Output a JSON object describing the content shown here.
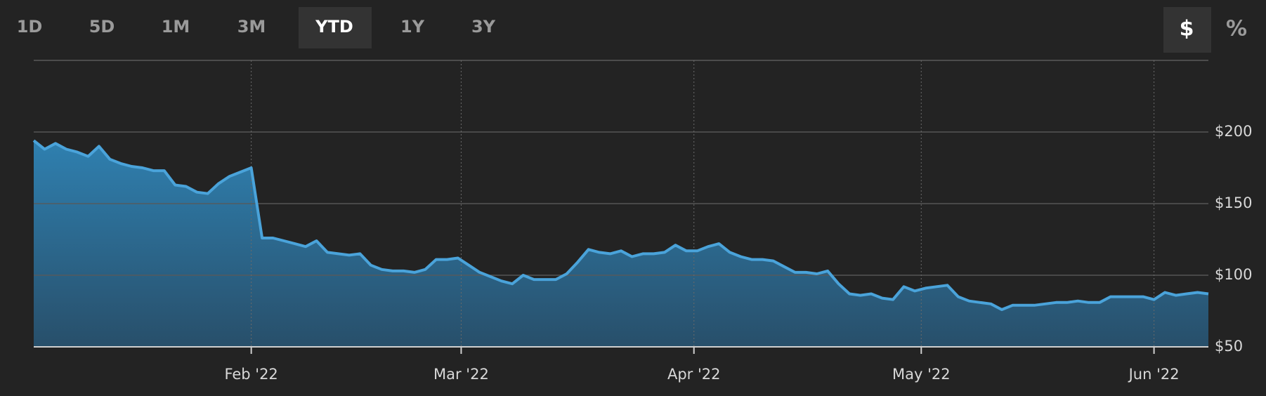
{
  "range_buttons": [
    "1D",
    "5D",
    "1M",
    "3M",
    "YTD",
    "1Y",
    "3Y"
  ],
  "selected_range": 4,
  "unit_buttons": [
    "$",
    "%"
  ],
  "selected_unit": 0,
  "chart_data": {
    "type": "area",
    "color": "#4aa3da",
    "values": [
      194,
      188,
      192,
      188,
      186,
      183,
      190,
      181,
      178,
      176,
      175,
      173,
      173,
      163,
      162,
      158,
      157,
      164,
      169,
      172,
      175,
      126,
      126,
      124,
      122,
      120,
      124,
      116,
      115,
      114,
      115,
      107,
      104,
      103,
      103,
      102,
      104,
      111,
      111,
      112,
      107,
      102,
      99,
      96,
      94,
      100,
      97,
      97,
      97,
      101,
      109,
      118,
      116,
      115,
      117,
      113,
      115,
      115,
      116,
      121,
      117,
      117,
      120,
      122,
      116,
      113,
      111,
      111,
      110,
      106,
      102,
      102,
      101,
      103,
      94,
      87,
      86,
      87,
      84,
      83,
      92,
      89,
      91,
      92,
      93,
      85,
      82,
      81,
      80,
      76,
      79,
      79,
      79,
      80,
      81,
      81,
      82,
      81,
      81,
      85,
      85,
      85,
      85,
      83,
      88,
      86,
      87,
      88,
      87
    ],
    "xlim": [
      0,
      108
    ],
    "xticks": [
      {
        "value": 20,
        "label": "Feb '22"
      },
      {
        "value": 39.3,
        "label": "Mar '22"
      },
      {
        "value": 60.7,
        "label": "Apr '22"
      },
      {
        "value": 81.6,
        "label": "May '22"
      },
      {
        "value": 103,
        "label": "Jun '22"
      }
    ],
    "ylim": [
      50,
      250
    ],
    "yticks": [
      {
        "value": 50,
        "label": "$50"
      },
      {
        "value": 100,
        "label": "$100"
      },
      {
        "value": 150,
        "label": "$150"
      },
      {
        "value": 200,
        "label": "$200"
      }
    ],
    "grid": true
  }
}
